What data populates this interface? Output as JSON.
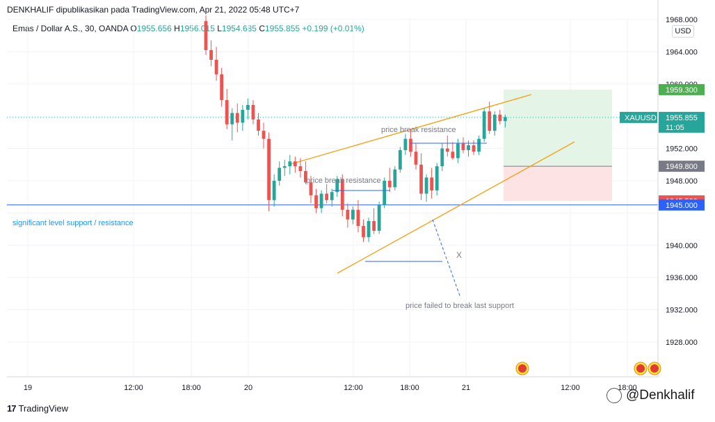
{
  "header": {
    "caption": "DENKHALIF dipublikasikan pada TradingView.com, Apr 21, 2022 05:48 UTC+7",
    "symbol_desc": "Emas / Dollar A.S., 30, OANDA",
    "open_label": "O",
    "open": "1955.656",
    "high_label": "H",
    "high": "1956.015",
    "low_label": "L",
    "low": "1954.685",
    "close_label": "C",
    "close": "1955.855",
    "change": "+0.199 (+0.01%)",
    "currency": "USD"
  },
  "footer": {
    "brand": "TradingView",
    "watermark": "@Denkhalif"
  },
  "colors": {
    "up": "#26a69a",
    "down": "#ef5350",
    "trend": "#f7a21b",
    "level": "#2962ff",
    "annotation": "#2962ff",
    "profit": "#e4f4e6",
    "loss": "#fde3e3"
  },
  "chart_data": {
    "type": "candlestick",
    "ylim": [
      1925,
      1968
    ],
    "y_ticks": [
      "1968.000",
      "1964.000",
      "1960.000",
      "1952.000",
      "1948.000",
      "1940.000",
      "1936.000",
      "1932.000",
      "1928.000"
    ],
    "x_ticks": [
      "19",
      "12:00",
      "18:00",
      "20",
      "12:00",
      "18:00",
      "21",
      "12:00",
      "18:00"
    ],
    "candles": [
      [
        1967.8,
        1968.5,
        1963.6,
        1964.2
      ],
      [
        1964.2,
        1965.4,
        1962.2,
        1963.0
      ],
      [
        1963.0,
        1964.6,
        1960.4,
        1961.2
      ],
      [
        1961.2,
        1962.0,
        1957.2,
        1958.0
      ],
      [
        1958.0,
        1959.4,
        1954.4,
        1955.0
      ],
      [
        1955.0,
        1957.0,
        1953.0,
        1956.4
      ],
      [
        1956.4,
        1957.6,
        1954.0,
        1955.2
      ],
      [
        1955.2,
        1957.4,
        1954.2,
        1956.8
      ],
      [
        1956.8,
        1958.2,
        1955.6,
        1957.4
      ],
      [
        1957.4,
        1958.0,
        1955.0,
        1955.6
      ],
      [
        1955.6,
        1956.4,
        1953.6,
        1954.2
      ],
      [
        1954.2,
        1955.2,
        1952.0,
        1953.2
      ],
      [
        1953.2,
        1954.0,
        1944.2,
        1945.6
      ],
      [
        1945.6,
        1948.8,
        1944.8,
        1948.0
      ],
      [
        1948.0,
        1950.4,
        1947.4,
        1949.6
      ],
      [
        1949.6,
        1950.6,
        1948.6,
        1949.8
      ],
      [
        1949.8,
        1951.2,
        1948.8,
        1950.4
      ],
      [
        1950.4,
        1951.0,
        1949.0,
        1949.8
      ],
      [
        1949.8,
        1950.8,
        1948.4,
        1949.2
      ],
      [
        1949.2,
        1950.4,
        1947.6,
        1947.8
      ],
      [
        1947.8,
        1948.6,
        1945.2,
        1946.2
      ],
      [
        1946.2,
        1947.0,
        1944.0,
        1944.6
      ],
      [
        1944.6,
        1946.8,
        1944.0,
        1946.4
      ],
      [
        1946.4,
        1947.6,
        1945.2,
        1945.6
      ],
      [
        1945.6,
        1947.0,
        1944.8,
        1946.6
      ],
      [
        1946.6,
        1948.6,
        1946.0,
        1948.2
      ],
      [
        1948.2,
        1948.8,
        1943.6,
        1944.4
      ],
      [
        1944.4,
        1945.2,
        1942.2,
        1943.2
      ],
      [
        1943.2,
        1944.8,
        1942.6,
        1944.4
      ],
      [
        1944.4,
        1945.6,
        1941.6,
        1942.4
      ],
      [
        1942.4,
        1943.2,
        1940.4,
        1941.0
      ],
      [
        1941.0,
        1943.4,
        1940.4,
        1943.0
      ],
      [
        1943.0,
        1944.6,
        1941.4,
        1941.8
      ],
      [
        1941.8,
        1945.4,
        1941.4,
        1945.0
      ],
      [
        1945.0,
        1948.4,
        1944.6,
        1948.0
      ],
      [
        1948.0,
        1949.6,
        1946.6,
        1947.2
      ],
      [
        1947.2,
        1949.8,
        1946.8,
        1949.4
      ],
      [
        1949.4,
        1952.2,
        1949.0,
        1951.8
      ],
      [
        1951.8,
        1953.8,
        1951.2,
        1953.2
      ],
      [
        1953.2,
        1954.4,
        1951.0,
        1951.6
      ],
      [
        1951.6,
        1952.6,
        1949.4,
        1950.0
      ],
      [
        1950.0,
        1951.4,
        1945.6,
        1946.4
      ],
      [
        1946.4,
        1948.8,
        1945.4,
        1948.4
      ],
      [
        1948.4,
        1949.6,
        1945.8,
        1946.8
      ],
      [
        1946.8,
        1950.2,
        1946.2,
        1949.8
      ],
      [
        1949.8,
        1952.6,
        1949.2,
        1952.0
      ],
      [
        1952.0,
        1953.6,
        1951.0,
        1951.6
      ],
      [
        1951.6,
        1952.8,
        1950.6,
        1950.8
      ],
      [
        1950.8,
        1953.2,
        1950.2,
        1952.6
      ],
      [
        1952.6,
        1953.4,
        1951.4,
        1951.8
      ],
      [
        1951.8,
        1953.0,
        1951.0,
        1952.4
      ],
      [
        1952.4,
        1953.0,
        1951.2,
        1951.6
      ],
      [
        1951.6,
        1953.6,
        1951.2,
        1953.2
      ],
      [
        1953.2,
        1957.0,
        1952.8,
        1956.6
      ],
      [
        1956.6,
        1957.8,
        1953.8,
        1954.2
      ],
      [
        1954.2,
        1956.6,
        1953.6,
        1956.2
      ],
      [
        1956.2,
        1956.8,
        1955.0,
        1955.4
      ],
      [
        1955.4,
        1956.2,
        1954.6,
        1955.9
      ]
    ],
    "last_price": "1955.855",
    "last_price_value": 1955.855,
    "symbol_tag": "XAUUSD",
    "countdown": "11:05",
    "support_level": 1945.0,
    "support_label": "significant level support / resistance",
    "support_tag": "1945.000",
    "take_profit": 1959.3,
    "take_profit_tag": "1959.300",
    "entry": 1949.8,
    "entry_tag": "1949.800",
    "stop_loss": 1945.5,
    "stop_loss_tag": "1945.500",
    "annotations": {
      "break1": "price break resistance",
      "break2": "price break resistance",
      "failed": "price failed to break last support",
      "x_mark": "X"
    }
  }
}
